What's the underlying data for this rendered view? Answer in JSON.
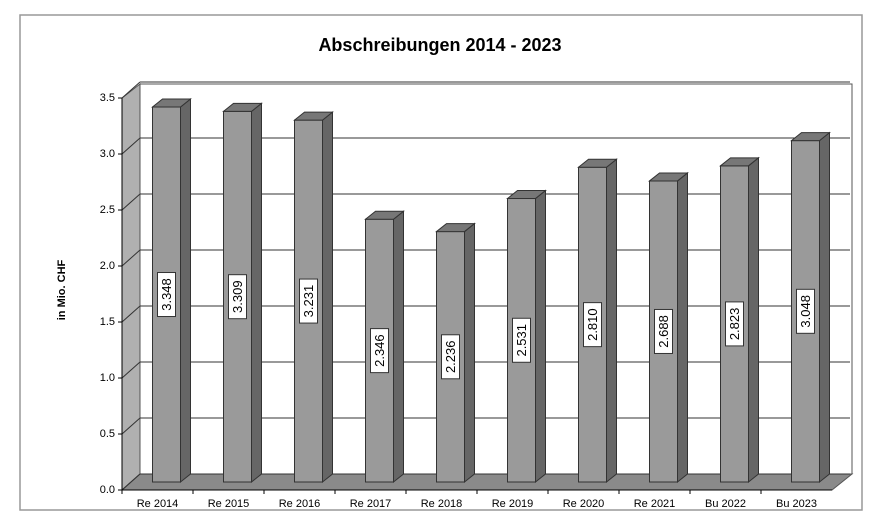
{
  "chart_data": {
    "type": "bar3d",
    "title": "Abschreibungen 2014 - 2023",
    "y_label": "in Mio. CHF",
    "categories": [
      "Re 2014",
      "Re 2015",
      "Re 2016",
      "Re 2017",
      "Re 2018",
      "Re 2019",
      "Re 2020",
      "Re 2021",
      "Bu 2022",
      "Bu 2023"
    ],
    "values": [
      3.348,
      3.309,
      3.231,
      2.346,
      2.236,
      2.531,
      2.81,
      2.688,
      2.823,
      3.048
    ],
    "value_labels": [
      "3.348",
      "3.309",
      "3.231",
      "2.346",
      "2.236",
      "2.531",
      "2.810",
      "2.688",
      "2.823",
      "3.048"
    ],
    "color": "#9a9a9a",
    "ylim": [
      0,
      3.5
    ],
    "yticks": [
      {
        "value": 0,
        "label": "0.0"
      },
      0.5,
      {
        "value": 1,
        "label": "1.0"
      },
      1.5,
      {
        "value": 2,
        "label": "2.0"
      },
      2.5,
      {
        "value": 3,
        "label": "3.0"
      },
      3.5
    ],
    "grid": true
  }
}
